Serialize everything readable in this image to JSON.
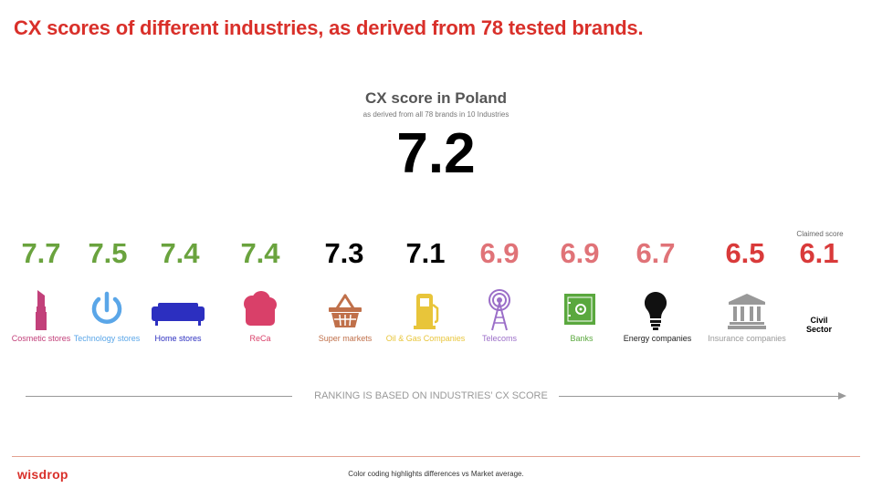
{
  "header": {
    "title": "CX scores of different industries, as derived from 78 tested brands."
  },
  "hero": {
    "title": "CX score in Poland",
    "subtitle": "as derived from all 78 brands in 10 Industries",
    "value": "7.2"
  },
  "claimed_label": "Claimed score",
  "colors": {
    "above": "#6aa33e",
    "neutral": "#000000",
    "below_light": "#e07378",
    "below_strong": "#d93a3a",
    "brand": "#d9302a"
  },
  "industries": [
    {
      "score": "7.7",
      "label": "Cosmetic stores",
      "icon": "lipstick-icon",
      "label_color": "#c2407a"
    },
    {
      "score": "7.5",
      "label": "Technology stores",
      "icon": "power-icon",
      "label_color": "#5aa6e8"
    },
    {
      "score": "7.4",
      "label": "Home stores",
      "icon": "sofa-icon",
      "label_color": "#2c2fc0"
    },
    {
      "score": "7.4",
      "label": "ReCa",
      "icon": "chef-hat-icon",
      "label_color": "#d94069"
    },
    {
      "score": "7.3",
      "label": "Super markets",
      "icon": "basket-icon",
      "label_color": "#c0704a"
    },
    {
      "score": "7.1",
      "label": "Oil & Gas Companies",
      "icon": "fuel-pump-icon",
      "label_color": "#e8c53a"
    },
    {
      "score": "6.9",
      "label": "Telecoms",
      "icon": "antenna-icon",
      "label_color": "#9b6ec8"
    },
    {
      "score": "6.9",
      "label": "Banks",
      "icon": "safe-icon",
      "label_color": "#5aa83e"
    },
    {
      "score": "6.7",
      "label": "Energy companies",
      "icon": "lightbulb-icon",
      "label_color": "#222222"
    },
    {
      "score": "6.5",
      "label": "Insurance companies",
      "icon": "institution-icon",
      "label_color": "#999999"
    },
    {
      "score": "6.1",
      "label": "Civil Sector",
      "icon": "",
      "label_color": "#000000"
    }
  ],
  "ranking_caption": "RANKING IS BASED ON INDUSTRIES’ CX SCORE",
  "footer": {
    "logo": "wisdrop",
    "note": "Color coding highlights differences vs Market average."
  }
}
